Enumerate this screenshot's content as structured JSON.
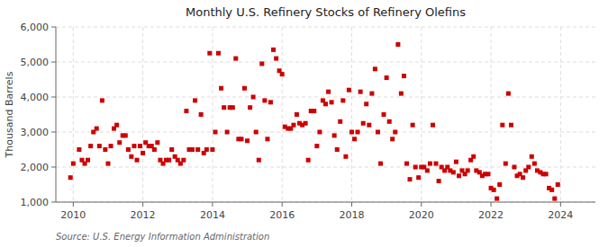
{
  "chart_data": {
    "type": "scatter",
    "title": "Monthly U.S. Refinery Stocks of Refinery Olefins",
    "ylabel": "Thousand Barrels",
    "annotation": "Source: U.S. Energy Information Administration",
    "color": "#cc0000",
    "marker": "square",
    "grid": true,
    "xlim": [
      2009.5,
      2025.0
    ],
    "xticks": [
      2010,
      2012,
      2014,
      2016,
      2018,
      2020,
      2022,
      2024
    ],
    "ylim": [
      1000,
      6000
    ],
    "yticks": [
      {
        "value": 1000,
        "label": "1,000"
      },
      {
        "value": 2000,
        "label": "2,000"
      },
      {
        "value": 3000,
        "label": "3,000"
      },
      {
        "value": 4000,
        "label": "4,000"
      },
      {
        "value": 5000,
        "label": "5,000"
      },
      {
        "value": 6000,
        "label": "6,000"
      }
    ],
    "x": [
      2009.92,
      2010.0,
      2010.17,
      2010.25,
      2010.33,
      2010.42,
      2010.5,
      2010.58,
      2010.67,
      2010.75,
      2010.83,
      2010.92,
      2011.0,
      2011.08,
      2011.17,
      2011.25,
      2011.33,
      2011.42,
      2011.5,
      2011.58,
      2011.67,
      2011.75,
      2011.83,
      2011.92,
      2012.0,
      2012.08,
      2012.17,
      2012.25,
      2012.33,
      2012.42,
      2012.5,
      2012.58,
      2012.67,
      2012.75,
      2012.83,
      2012.92,
      2013.0,
      2013.08,
      2013.17,
      2013.25,
      2013.33,
      2013.42,
      2013.5,
      2013.58,
      2013.67,
      2013.75,
      2013.83,
      2013.92,
      2014.0,
      2014.08,
      2014.17,
      2014.25,
      2014.33,
      2014.42,
      2014.5,
      2014.58,
      2014.67,
      2014.75,
      2014.83,
      2014.92,
      2015.0,
      2015.08,
      2015.17,
      2015.25,
      2015.33,
      2015.42,
      2015.5,
      2015.58,
      2015.67,
      2015.75,
      2015.83,
      2015.92,
      2016.0,
      2016.08,
      2016.17,
      2016.25,
      2016.33,
      2016.42,
      2016.5,
      2016.58,
      2016.67,
      2016.75,
      2016.83,
      2016.92,
      2017.0,
      2017.08,
      2017.17,
      2017.25,
      2017.33,
      2017.42,
      2017.5,
      2017.58,
      2017.67,
      2017.75,
      2017.83,
      2017.92,
      2018.0,
      2018.08,
      2018.17,
      2018.25,
      2018.33,
      2018.42,
      2018.5,
      2018.58,
      2018.67,
      2018.75,
      2018.83,
      2018.92,
      2019.0,
      2019.08,
      2019.17,
      2019.25,
      2019.33,
      2019.42,
      2019.5,
      2019.58,
      2019.67,
      2019.75,
      2019.83,
      2019.92,
      2020.0,
      2020.08,
      2020.17,
      2020.25,
      2020.33,
      2020.42,
      2020.5,
      2020.58,
      2020.67,
      2020.75,
      2020.83,
      2020.92,
      2021.0,
      2021.08,
      2021.17,
      2021.25,
      2021.33,
      2021.42,
      2021.5,
      2021.58,
      2021.67,
      2021.75,
      2021.83,
      2021.92,
      2022.0,
      2022.08,
      2022.17,
      2022.25,
      2022.33,
      2022.42,
      2022.5,
      2022.58,
      2022.67,
      2022.75,
      2022.83,
      2022.92,
      2023.0,
      2023.08,
      2023.17,
      2023.25,
      2023.33,
      2023.42,
      2023.5,
      2023.58,
      2023.67,
      2023.75,
      2023.83,
      2023.92
    ],
    "values": [
      1700,
      2100,
      2500,
      2200,
      2100,
      2200,
      2600,
      3000,
      3100,
      2600,
      3900,
      2500,
      2100,
      2600,
      3100,
      3200,
      2700,
      2900,
      2900,
      2500,
      2300,
      2600,
      2200,
      2600,
      2400,
      2700,
      2600,
      2600,
      2500,
      2700,
      2200,
      2100,
      2200,
      2200,
      2500,
      2300,
      2200,
      2100,
      2200,
      3600,
      2500,
      2500,
      3900,
      2500,
      3500,
      2400,
      2500,
      5250,
      2500,
      3000,
      5250,
      4250,
      3700,
      3000,
      3700,
      3700,
      5100,
      2800,
      2800,
      4250,
      2750,
      3700,
      4000,
      3000,
      2200,
      4950,
      3900,
      2800,
      3850,
      5350,
      5100,
      4750,
      4650,
      3150,
      3100,
      3100,
      3200,
      3500,
      3250,
      3200,
      3250,
      2200,
      3600,
      3600,
      2600,
      3000,
      3900,
      3800,
      4150,
      3850,
      2900,
      2500,
      3300,
      3900,
      2300,
      4200,
      3000,
      2800,
      3000,
      4150,
      3250,
      3800,
      3200,
      4100,
      4800,
      3000,
      2100,
      3500,
      4550,
      3300,
      2800,
      3000,
      5500,
      4100,
      4600,
      2100,
      1650,
      3200,
      2000,
      1700,
      2000,
      2000,
      1900,
      2100,
      3200,
      2100,
      1600,
      2000,
      1900,
      2000,
      1900,
      1850,
      2150,
      1750,
      1900,
      1800,
      1900,
      2200,
      2300,
      1900,
      1850,
      1750,
      1800,
      1800,
      1400,
      1350,
      1100,
      1500,
      3200,
      2100,
      4100,
      3200,
      2000,
      1750,
      1800,
      1700,
      1900,
      2000,
      2300,
      2100,
      1900,
      1850,
      1800,
      1800,
      1400,
      1350,
      1100,
      1500
    ]
  }
}
